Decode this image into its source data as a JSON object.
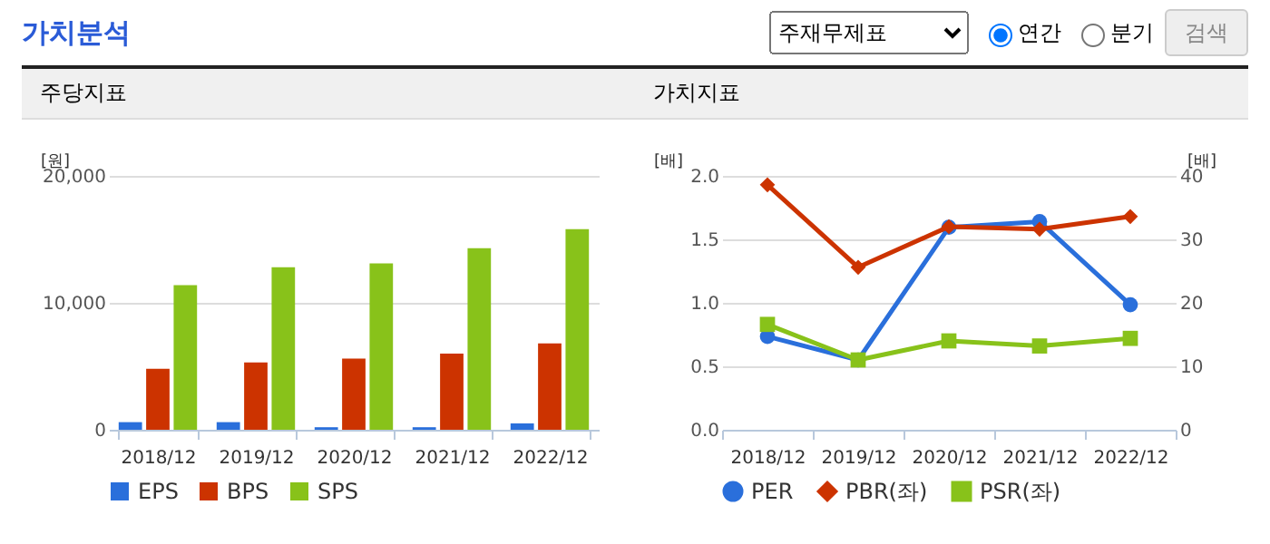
{
  "chart_data": [
    {
      "type": "other",
      "title": "가치분석",
      "annotations": [
        "주재무제표",
        "연간",
        "분기",
        "검색"
      ]
    },
    {
      "type": "bar",
      "title": "주당지표",
      "ylabel": "[원]",
      "categories": [
        "2018/12",
        "2019/12",
        "2020/12",
        "2021/12",
        "2022/12"
      ],
      "series": [
        {
          "name": "EPS",
          "color": "#2a6fdb",
          "values": [
            600,
            600,
            200,
            200,
            500
          ]
        },
        {
          "name": "BPS",
          "color": "#cc3300",
          "values": [
            4800,
            5300,
            5600,
            6000,
            6800
          ]
        },
        {
          "name": "SPS",
          "color": "#88c21a",
          "values": [
            11400,
            12800,
            13100,
            14300,
            15800
          ]
        }
      ],
      "ylim": [
        0,
        20000
      ],
      "yticks": [
        {
          "value": 0,
          "label": "0"
        },
        {
          "value": 10000,
          "label": "10,000"
        },
        {
          "value": 20000,
          "label": "20,000"
        }
      ],
      "grid": "y",
      "legend": "bottom"
    },
    {
      "type": "line",
      "title": "가치지표",
      "ylabel": "[배]",
      "y2label": "[배]",
      "categories": [
        "2018/12",
        "2019/12",
        "2020/12",
        "2021/12",
        "2022/12"
      ],
      "series": [
        {
          "name": "PER",
          "color": "#2a6fdb",
          "marker": "circle",
          "axis": "y2",
          "values": [
            14.7,
            11.0,
            31.9,
            32.8,
            19.7
          ]
        },
        {
          "name": "PBR(좌)",
          "color": "#cc3300",
          "marker": "diamond",
          "values": [
            1.93,
            1.28,
            1.6,
            1.58,
            1.68
          ]
        },
        {
          "name": "PSR(좌)",
          "color": "#88c21a",
          "marker": "square",
          "values": [
            0.83,
            0.55,
            0.7,
            0.66,
            0.72
          ]
        }
      ],
      "ylim": [
        0,
        2
      ],
      "yticks": [
        {
          "value": 0,
          "label": "0.0"
        },
        {
          "value": 0.5,
          "label": "0.5"
        },
        {
          "value": 1,
          "label": "1.0"
        },
        {
          "value": 1.5,
          "label": "1.5"
        },
        {
          "value": 2,
          "label": "2.0"
        }
      ],
      "y2lim": [
        0,
        40
      ],
      "y2ticks": [
        0,
        10,
        20,
        30,
        40
      ],
      "grid": "y",
      "legend": "bottom",
      "line_style": "solid"
    }
  ]
}
